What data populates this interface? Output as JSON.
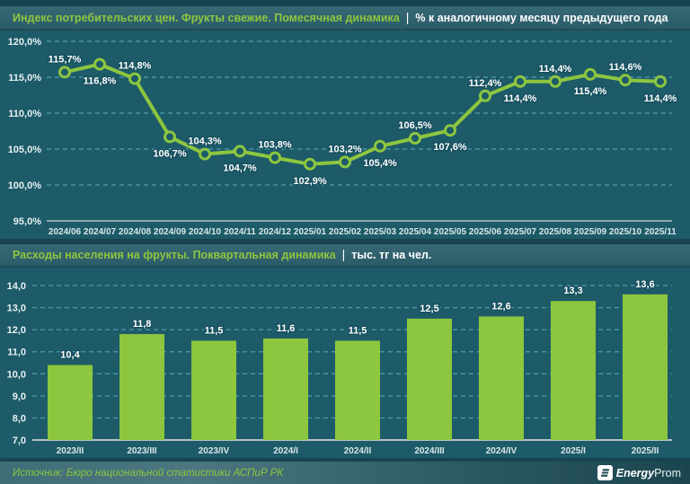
{
  "page": {
    "separator": "|",
    "colors": {
      "background": "#1d5b69",
      "band": "#2e5f6b",
      "accent_green": "#8dc63f",
      "grid": "#4f9db2",
      "axis_line": "#b4c3c6",
      "tick_text": "#e7f0f1",
      "data_label": "#ffffff"
    }
  },
  "footer": {
    "source": "Источник: Бюро национальной статистики АСПиР РК",
    "logo_bold": "Energy",
    "logo_light": "Prom"
  },
  "chart_data": [
    {
      "type": "line",
      "title": "Индекс потребительских цен. Фрукты свежие. Помесячная динамика",
      "unit": "% к аналогичному месяцу предыдущего года",
      "x": [
        "2024/06",
        "2024/07",
        "2024/08",
        "2024/09",
        "2024/10",
        "2024/11",
        "2024/12",
        "2025/01",
        "2025/02",
        "2025/03",
        "2025/04",
        "2025/05",
        "2025/06",
        "2025/07",
        "2025/08",
        "2025/09",
        "2025/10",
        "2025/11"
      ],
      "values": [
        115.7,
        116.8,
        114.8,
        106.7,
        104.3,
        104.7,
        103.8,
        102.9,
        103.2,
        105.4,
        106.5,
        107.6,
        112.4,
        114.4,
        114.4,
        115.4,
        114.6,
        114.4
      ],
      "value_labels": [
        "115,7%",
        "116,8%",
        "114,8%",
        "106,7%",
        "104,3%",
        "104,7%",
        "103,8%",
        "102,9%",
        "103,2%",
        "105,4%",
        "106,5%",
        "107,6%",
        "112,4%",
        "114,4%",
        "114,4%",
        "115,4%",
        "114,6%",
        "114,4%"
      ],
      "ylim": [
        95,
        120
      ],
      "yticks": [
        120,
        115,
        110,
        105,
        100,
        95
      ],
      "ytick_labels": [
        "120,0%",
        "115,0%",
        "110,0%",
        "105,0%",
        "100,0%",
        "95,0%"
      ],
      "grid": true,
      "legend": "none",
      "line_color": "#8dc63f",
      "marker": "hollow-circle"
    },
    {
      "type": "bar",
      "title": "Расходы населения на фрукты. Поквартальная динамика",
      "unit": "тыс. тг на чел.",
      "categories": [
        "2023/II",
        "2023/III",
        "2023/IV",
        "2024/I",
        "2024/II",
        "2024/III",
        "2024/IV",
        "2025/I",
        "2025/II"
      ],
      "values": [
        10.4,
        11.8,
        11.5,
        11.6,
        11.5,
        12.5,
        12.6,
        13.3,
        13.6
      ],
      "value_labels": [
        "10,4",
        "11,8",
        "11,5",
        "11,6",
        "11,5",
        "12,5",
        "12,6",
        "13,3",
        "13,6"
      ],
      "ylim": [
        7,
        14
      ],
      "yticks": [
        14,
        13,
        12,
        11,
        10,
        9,
        8,
        7
      ],
      "ytick_labels": [
        "14,0",
        "13,0",
        "12,0",
        "11,0",
        "10,0",
        "9,0",
        "8,0",
        "7,0"
      ],
      "grid": true,
      "legend": "none",
      "bar_color": "#8dc63f"
    }
  ]
}
